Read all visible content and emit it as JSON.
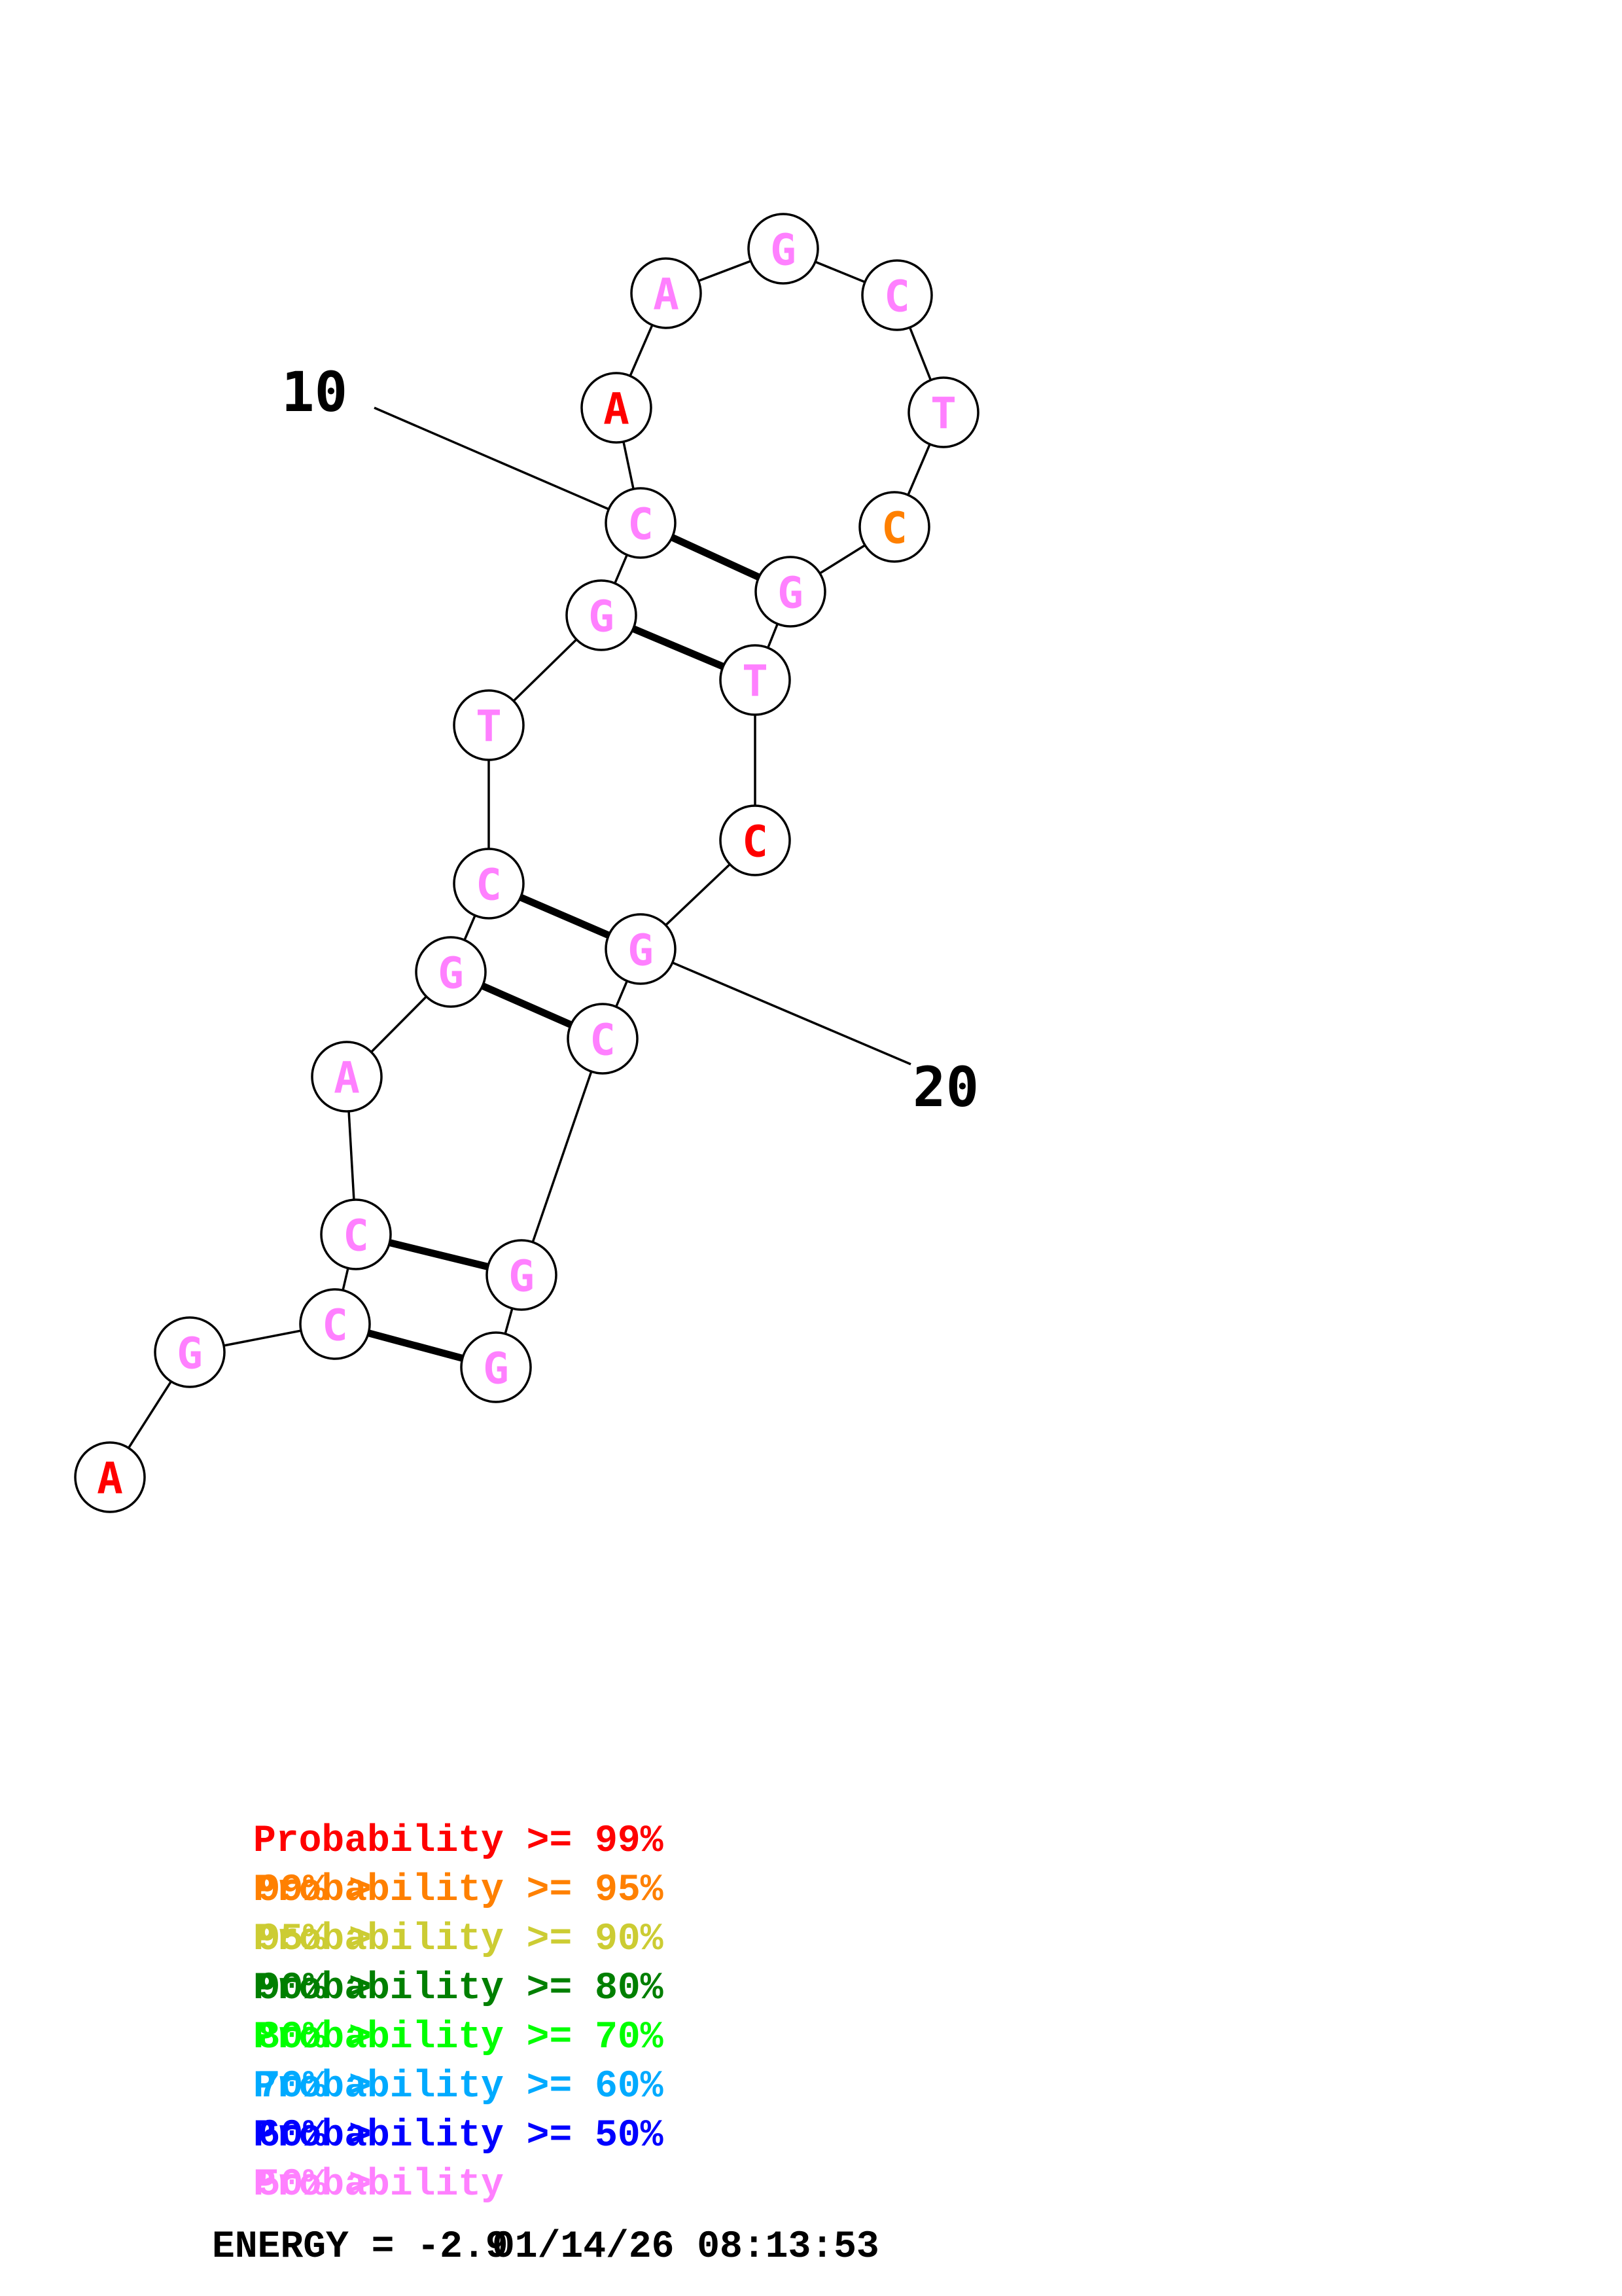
{
  "colors": {
    "p99": "#ff0000",
    "p95": "#ff8000",
    "p90": "#cccc33",
    "p80": "#007f00",
    "p70": "#00ff00",
    "p60": "#00aaff",
    "p50": "#0000ff",
    "below50": "#ff80ff"
  },
  "structure": {
    "nucleotides": [
      {
        "index": 1,
        "base": "A",
        "color": "#ff0000"
      },
      {
        "index": 2,
        "base": "G",
        "color": "#ff80ff"
      },
      {
        "index": 3,
        "base": "C",
        "color": "#ff80ff"
      },
      {
        "index": 4,
        "base": "C",
        "color": "#ff80ff"
      },
      {
        "index": 5,
        "base": "A",
        "color": "#ff80ff"
      },
      {
        "index": 6,
        "base": "G",
        "color": "#ff80ff"
      },
      {
        "index": 7,
        "base": "C",
        "color": "#ff80ff"
      },
      {
        "index": 8,
        "base": "T",
        "color": "#ff80ff"
      },
      {
        "index": 9,
        "base": "G",
        "color": "#ff80ff"
      },
      {
        "index": 10,
        "base": "C",
        "color": "#ff80ff"
      },
      {
        "index": 11,
        "base": "A",
        "color": "#ff0000"
      },
      {
        "index": 12,
        "base": "A",
        "color": "#ff80ff"
      },
      {
        "index": 13,
        "base": "G",
        "color": "#ff80ff"
      },
      {
        "index": 14,
        "base": "C",
        "color": "#ff80ff"
      },
      {
        "index": 15,
        "base": "T",
        "color": "#ff80ff"
      },
      {
        "index": 16,
        "base": "C",
        "color": "#ff8000"
      },
      {
        "index": 17,
        "base": "G",
        "color": "#ff80ff"
      },
      {
        "index": 18,
        "base": "T",
        "color": "#ff80ff"
      },
      {
        "index": 19,
        "base": "C",
        "color": "#ff0000"
      },
      {
        "index": 20,
        "base": "G",
        "color": "#ff80ff"
      },
      {
        "index": 21,
        "base": "C",
        "color": "#ff80ff"
      },
      {
        "index": 22,
        "base": "G",
        "color": "#ff80ff"
      },
      {
        "index": 23,
        "base": "G",
        "color": "#ff80ff"
      }
    ],
    "pairs": [
      [
        3,
        23
      ],
      [
        4,
        22
      ],
      [
        6,
        21
      ],
      [
        7,
        20
      ],
      [
        9,
        18
      ],
      [
        10,
        17
      ]
    ],
    "number_labels": [
      {
        "text": "10",
        "index": 10
      },
      {
        "text": "20",
        "index": 20
      }
    ]
  },
  "legend": [
    {
      "prefix": "",
      "text": "Probability >= 99%",
      "color": "#ff0000"
    },
    {
      "prefix": "99% > ",
      "text": "Probability >= 95%",
      "color": "#ff8000"
    },
    {
      "prefix": "95% > ",
      "text": "Probability >= 90%",
      "color": "#cccc33"
    },
    {
      "prefix": "90% > ",
      "text": "Probability >= 80%",
      "color": "#007f00"
    },
    {
      "prefix": "80% > ",
      "text": "Probability >= 70%",
      "color": "#00ff00"
    },
    {
      "prefix": "70% > ",
      "text": "Probability >= 60%",
      "color": "#00aaff"
    },
    {
      "prefix": "60% > ",
      "text": "Probability >= 50%",
      "color": "#0000ff"
    },
    {
      "prefix": "50% > ",
      "text": "Probability",
      "color": "#ff80ff"
    }
  ],
  "energy": {
    "label": "ENERGY = -2.9",
    "timestamp": "01/14/26 08:13:53"
  }
}
